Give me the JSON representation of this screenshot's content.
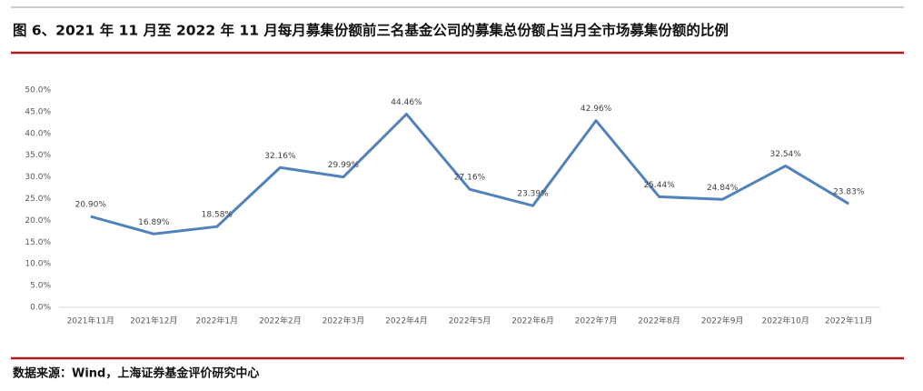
{
  "chart_data": {
    "type": "line",
    "title": "图 6、2021 年 11 月至 2022 年 11 月每月募集份额前三名基金公司的募集总份额占当月全市场募集份额的比例",
    "source": "数据来源：Wind，上海证券基金评价研究中心",
    "categories": [
      "2021年11月",
      "2021年12月",
      "2022年1月",
      "2022年2月",
      "2022年3月",
      "2022年4月",
      "2022年5月",
      "2022年6月",
      "2022年7月",
      "2022年8月",
      "2022年9月",
      "2022年10月",
      "2022年11月"
    ],
    "values": [
      20.9,
      16.89,
      18.58,
      32.16,
      29.99,
      44.46,
      27.16,
      23.39,
      42.96,
      25.44,
      24.84,
      32.54,
      23.83
    ],
    "value_labels": [
      "20.90%",
      "16.89%",
      "18.58%",
      "32.16%",
      "29.99%",
      "44.46%",
      "27.16%",
      "23.39%",
      "42.96%",
      "25.44%",
      "24.84%",
      "32.54%",
      "23.83%"
    ],
    "color": "#5182bb",
    "ylim": [
      0,
      50
    ],
    "yticks": [
      {
        "value": 0,
        "label": "0.0%"
      },
      {
        "value": 5,
        "label": "5.0%"
      },
      {
        "value": 10,
        "label": "10.0%"
      },
      {
        "value": 15,
        "label": "15.0%"
      },
      {
        "value": 20,
        "label": "20.0%"
      },
      {
        "value": 25,
        "label": "25.0%"
      },
      {
        "value": 30,
        "label": "30.0%"
      },
      {
        "value": 35,
        "label": "35.0%"
      },
      {
        "value": 40,
        "label": "40.0%"
      },
      {
        "value": 45,
        "label": "45.0%"
      },
      {
        "value": 50,
        "label": "50.0%"
      }
    ],
    "grid": false
  }
}
